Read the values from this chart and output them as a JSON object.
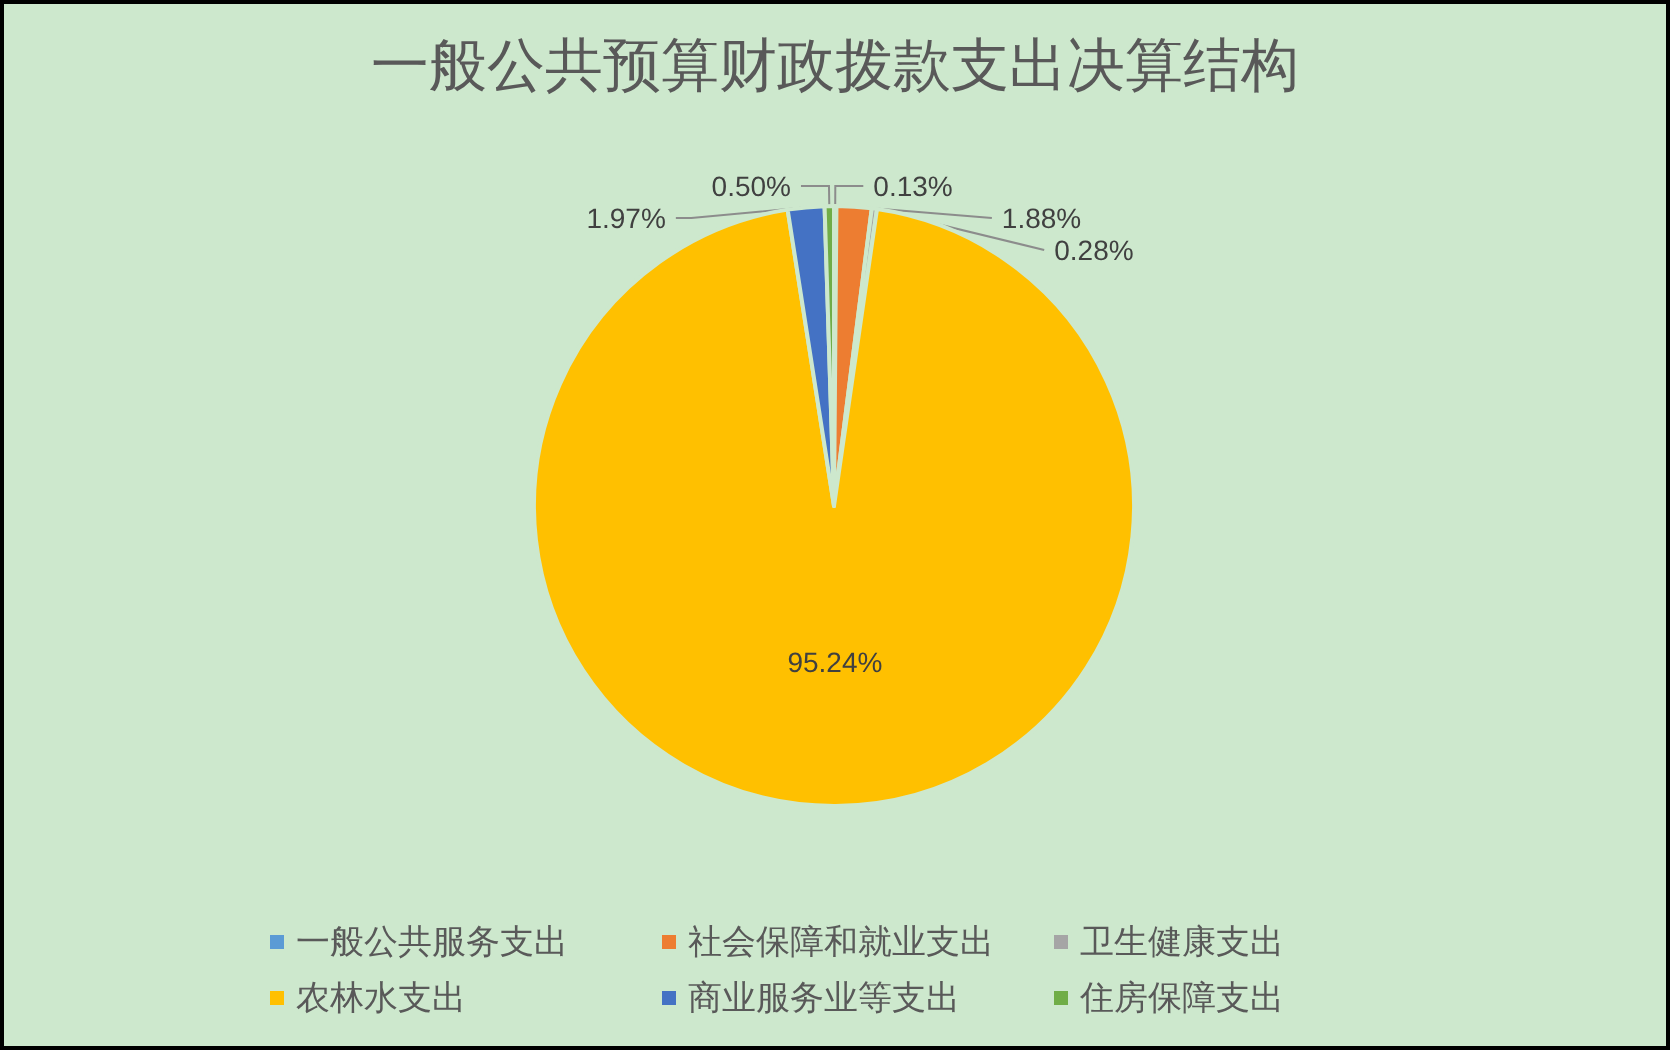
{
  "chart_data": {
    "type": "pie",
    "title": "一般公共预算财政拨款支出决算结构",
    "categories": [
      "一般公共服务支出",
      "社会保障和就业支出",
      "卫生健康支出",
      "农林水支出",
      "商业服务业等支出",
      "住房保障支出"
    ],
    "values": [
      0.13,
      1.88,
      0.28,
      95.24,
      1.97,
      0.5
    ],
    "colors": [
      "#5b9bd5",
      "#ed7d31",
      "#a5a5a5",
      "#ffc000",
      "#4472c4",
      "#70ad47"
    ],
    "value_labels": [
      "0.13%",
      "1.88%",
      "0.28%",
      "95.24%",
      "1.97%",
      "0.50%"
    ],
    "legend": "bottom"
  }
}
